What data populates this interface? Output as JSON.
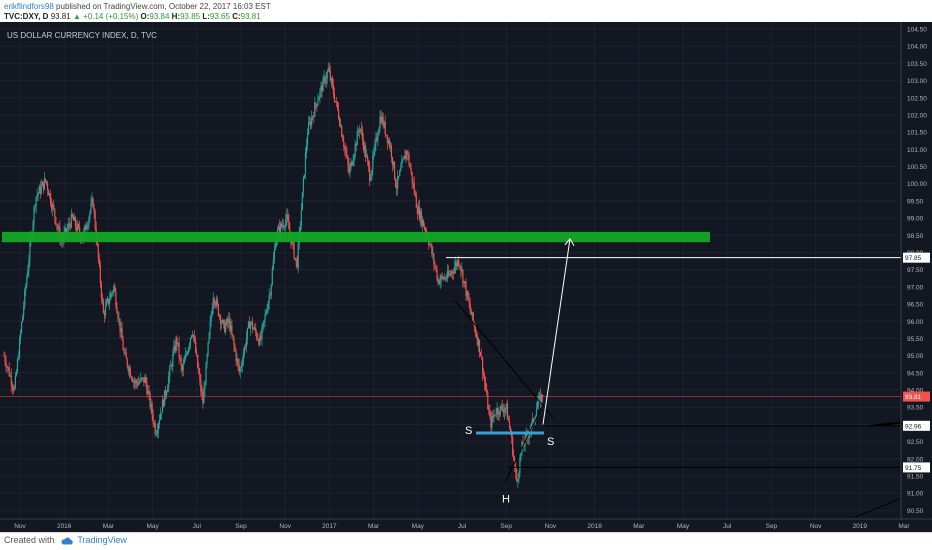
{
  "header": {
    "author": "erikflindfors98",
    "published_text": "published on TradingView.com, October 22, 2017 16:03 EST",
    "symbol": "TVC:DXY, D",
    "last": "93.81",
    "change": "▲ +0.14 (+0.15%)",
    "open_label": "O:",
    "open": "93.84",
    "high_label": "H:",
    "high": "93.85",
    "low_label": "L:",
    "low": "93.65",
    "close_label": "C:",
    "close": "93.81"
  },
  "footer": {
    "created_with": "Created with",
    "brand": "TradingView"
  },
  "chart_data": {
    "type": "candlestick",
    "title": "US DOLLAR CURRENCY INDEX, D, TVC",
    "ylim": [
      90.25,
      104.5
    ],
    "y_ticks": [
      "90.50",
      "91.00",
      "91.50",
      "92.00",
      "92.50",
      "93.00",
      "93.50",
      "94.00",
      "94.50",
      "95.00",
      "95.50",
      "96.00",
      "96.50",
      "97.00",
      "97.50",
      "98.00",
      "98.50",
      "99.00",
      "99.50",
      "100.00",
      "100.50",
      "101.00",
      "101.50",
      "102.00",
      "102.50",
      "103.00",
      "103.50",
      "104.00",
      "104.50"
    ],
    "x_ticks": [
      "Nov",
      "2016",
      "Mar",
      "May",
      "Jul",
      "Sep",
      "Nov",
      "2017",
      "Mar",
      "May",
      "Jul",
      "Sep",
      "Nov",
      "2018",
      "Mar",
      "May",
      "Jul",
      "Sep",
      "Nov",
      "2019",
      "Mar"
    ],
    "price_path": [
      [
        0,
        95.0
      ],
      [
        2,
        94.0
      ],
      [
        6,
        99.6
      ],
      [
        8,
        100.1
      ],
      [
        11,
        98.3
      ],
      [
        13,
        99.0
      ],
      [
        15,
        98.4
      ],
      [
        17,
        99.5
      ],
      [
        19,
        96.2
      ],
      [
        21,
        97.0
      ],
      [
        23,
        95.0
      ],
      [
        25,
        94.2
      ],
      [
        27,
        94.3
      ],
      [
        29,
        92.8
      ],
      [
        31,
        94.0
      ],
      [
        33,
        95.5
      ],
      [
        34,
        94.5
      ],
      [
        36,
        95.8
      ],
      [
        38,
        93.6
      ],
      [
        40,
        96.8
      ],
      [
        42,
        95.8
      ],
      [
        43,
        96.0
      ],
      [
        45,
        94.5
      ],
      [
        47,
        96.0
      ],
      [
        49,
        95.4
      ],
      [
        51,
        97.0
      ],
      [
        52,
        98.5
      ],
      [
        54,
        99.0
      ],
      [
        56,
        97.6
      ],
      [
        58,
        101.5
      ],
      [
        60,
        102.5
      ],
      [
        62,
        103.3
      ],
      [
        64,
        102.0
      ],
      [
        66,
        100.3
      ],
      [
        68,
        101.7
      ],
      [
        70,
        100.2
      ],
      [
        72,
        102.0
      ],
      [
        74,
        101.0
      ],
      [
        75,
        99.9
      ],
      [
        77,
        101.0
      ],
      [
        79,
        99.3
      ],
      [
        81,
        98.5
      ],
      [
        83,
        97.2
      ],
      [
        85,
        97.3
      ],
      [
        87,
        97.8
      ],
      [
        89,
        96.4
      ],
      [
        91,
        95.2
      ],
      [
        93,
        93.0
      ],
      [
        94,
        93.4
      ],
      [
        96,
        93.5
      ],
      [
        97,
        92.6
      ],
      [
        98,
        91.3
      ],
      [
        99,
        92.3
      ],
      [
        101,
        93.0
      ],
      [
        102,
        93.6
      ],
      [
        103,
        93.81
      ]
    ],
    "last_price": 93.81,
    "annotations": {
      "resistance_zone": [
        98.3,
        98.6
      ],
      "neckline": 92.96,
      "levels": [
        "97.85",
        "93.81",
        "92.96",
        "91.75"
      ],
      "left_shoulder_label": "S",
      "right_shoulder_label": "S",
      "head_label": "H",
      "target_arrow": {
        "from": 93.0,
        "to": 98.4
      }
    }
  }
}
